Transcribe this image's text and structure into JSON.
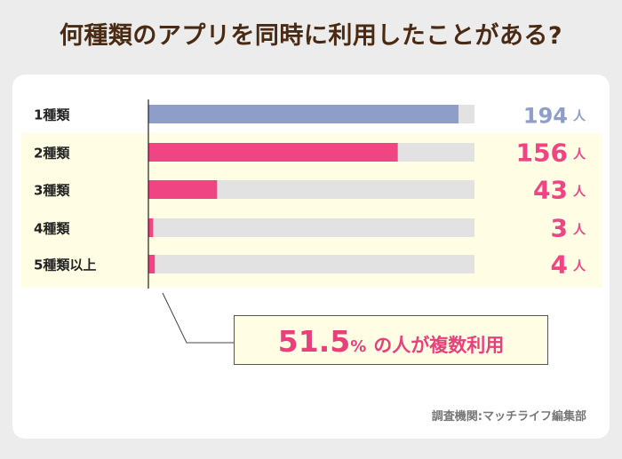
{
  "header": {
    "title": "何種類のアプリを同時に利用したことがある?"
  },
  "chart_data": {
    "type": "bar",
    "orientation": "horizontal",
    "title": "何種類のアプリを同時に利用したことがある?",
    "categories": [
      "1種類",
      "2種類",
      "3種類",
      "4種類",
      "5種類以上"
    ],
    "values": [
      194,
      156,
      43,
      3,
      4
    ],
    "unit": "人",
    "xlim": [
      0,
      204
    ],
    "colors": {
      "first": "#8f9dc9",
      "highlight": "#ef4583",
      "track": "#e2e2e2"
    }
  },
  "callout": {
    "percent": "51.5",
    "percent_unit": "%",
    "text": "の人が複数利用"
  },
  "source": {
    "text": "調査機関:マッチライフ編集部"
  },
  "colors": {
    "title": "#4a2a12",
    "accent": "#e8407a",
    "band": "#fffde4",
    "card": "#ffffff"
  }
}
